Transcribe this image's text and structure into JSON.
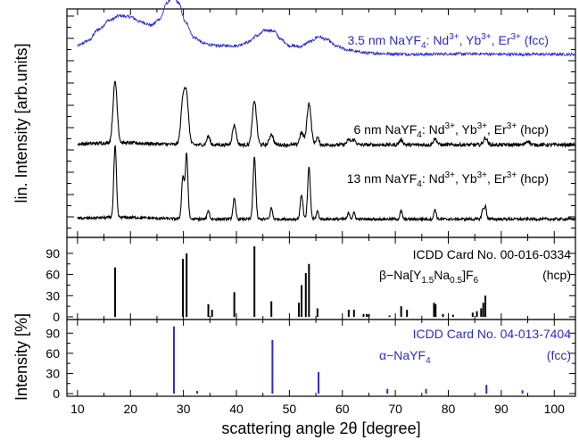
{
  "chart_data": [
    {
      "type": "line",
      "panel": "xrd-patterns",
      "ylabel": "lin. Intensity [arb.units]",
      "xlim": [
        8,
        104
      ],
      "series": [
        {
          "name": "3.5 nm NaYF4: Nd3+, Yb3+, Er3+ (fcc)",
          "label": {
            "text": "3.5 nm NaYF",
            "sub": "4",
            "mid": ": Nd",
            "sup1": "3+",
            "mid2": ", Yb",
            "sup2": "3+",
            "mid3": ",  Er",
            "sup3": "3+",
            "tail": " (fcc)"
          },
          "color": "#2b2bd4",
          "baseline": 0.25,
          "noise": 0.035,
          "points": [
            [
              10,
              0.3
            ],
            [
              12,
              0.42
            ],
            [
              14,
              0.7
            ],
            [
              16,
              0.92
            ],
            [
              18,
              1.03
            ],
            [
              20,
              1.0
            ],
            [
              22,
              0.88
            ],
            [
              24,
              0.8
            ],
            [
              25.5,
              0.95
            ],
            [
              27,
              1.35
            ],
            [
              28,
              1.52
            ],
            [
              29,
              1.35
            ],
            [
              30.5,
              0.85
            ],
            [
              32,
              0.5
            ],
            [
              34,
              0.35
            ],
            [
              36,
              0.3
            ],
            [
              38,
              0.3
            ],
            [
              40,
              0.3
            ],
            [
              42,
              0.38
            ],
            [
              44,
              0.55
            ],
            [
              45.5,
              0.68
            ],
            [
              47,
              0.66
            ],
            [
              48.5,
              0.45
            ],
            [
              50,
              0.3
            ],
            [
              52,
              0.28
            ],
            [
              54,
              0.4
            ],
            [
              55.5,
              0.52
            ],
            [
              57,
              0.45
            ],
            [
              59,
              0.28
            ],
            [
              61,
              0.2
            ],
            [
              63,
              0.15
            ],
            [
              65,
              0.12
            ],
            [
              70,
              0.1
            ],
            [
              75,
              0.09
            ],
            [
              80,
              0.1
            ],
            [
              86,
              0.1
            ],
            [
              90,
              0.09
            ],
            [
              100,
              0.09
            ],
            [
              104,
              0.09
            ]
          ]
        },
        {
          "name": "6 nm NaYF4: Nd3+, Yb3+, Er3+ (hcp)",
          "label": {
            "text": "6 nm  NaYF",
            "sub": "4",
            "mid": ": Nd",
            "sup1": "3+",
            "mid2": ", Yb",
            "sup2": "3+",
            "mid3": ",  Er",
            "sup3": "3+",
            "tail": " (hcp)"
          },
          "color": "#000000",
          "baseline": 0.05,
          "noise": 0.035,
          "peaks": [
            [
              17.1,
              1.25,
              0.55
            ],
            [
              29.9,
              0.85,
              0.55
            ],
            [
              30.6,
              0.9,
              0.55
            ],
            [
              34.7,
              0.18,
              0.4
            ],
            [
              39.6,
              0.4,
              0.5
            ],
            [
              43.4,
              0.9,
              0.55
            ],
            [
              46.6,
              0.22,
              0.5
            ],
            [
              52.3,
              0.25,
              0.5
            ],
            [
              53.7,
              0.85,
              0.55
            ],
            [
              55.3,
              0.15,
              0.4
            ],
            [
              61.2,
              0.1,
              0.5
            ],
            [
              62.2,
              0.1,
              0.5
            ],
            [
              71.1,
              0.1,
              0.5
            ],
            [
              77.5,
              0.12,
              0.5
            ],
            [
              87.0,
              0.14,
              0.5
            ],
            [
              95.0,
              0.08,
              0.5
            ]
          ]
        },
        {
          "name": "13 nm NaYF4: Nd3+, Yb3+, Er3+ (hcp)",
          "label": {
            "text": "13 nm  NaYF",
            "sub": "4",
            "mid": ": Nd",
            "sup1": "3+",
            "mid2": ", Yb",
            "sup2": "3+",
            "mid3": ",  Er",
            "sup3": "3+",
            "tail": " (hcp)"
          },
          "color": "#000000",
          "baseline": 0.05,
          "noise": 0.03,
          "peaks": [
            [
              17.1,
              1.6,
              0.35
            ],
            [
              29.9,
              0.95,
              0.35
            ],
            [
              30.6,
              1.45,
              0.35
            ],
            [
              34.7,
              0.2,
              0.3
            ],
            [
              39.6,
              0.45,
              0.35
            ],
            [
              43.4,
              1.4,
              0.35
            ],
            [
              46.6,
              0.25,
              0.3
            ],
            [
              52.3,
              0.55,
              0.35
            ],
            [
              53.7,
              1.15,
              0.35
            ],
            [
              55.3,
              0.18,
              0.3
            ],
            [
              61.2,
              0.14,
              0.3
            ],
            [
              62.2,
              0.14,
              0.3
            ],
            [
              71.1,
              0.18,
              0.3
            ],
            [
              77.5,
              0.22,
              0.3
            ],
            [
              86.5,
              0.2,
              0.3
            ],
            [
              87.0,
              0.28,
              0.3
            ]
          ]
        }
      ]
    },
    {
      "type": "bar",
      "panel": "icdd-hcp",
      "ylabel": "Intensity [%]",
      "yticks": [
        0,
        30,
        60,
        90
      ],
      "ylim": [
        0,
        105
      ],
      "annotation_line1": "ICDD Card No. 00-016-0334",
      "annotation_line2": {
        "prefix": "β−Na[Y",
        "sub1": "1.5",
        "mid": "Na",
        "sub2": "0.5",
        "mid2": "]F",
        "sub3": "6"
      },
      "annotation_phase": "(hcp)",
      "color": "#000000",
      "x": [
        17.1,
        29.9,
        30.6,
        34.7,
        35.4,
        39.6,
        43.4,
        46.6,
        51.8,
        52.3,
        53.1,
        53.7,
        55.3,
        61.2,
        62.2,
        64.0,
        64.6,
        65.0,
        68.9,
        71.1,
        72.2,
        77.3,
        77.6,
        79.0,
        80.9,
        84.6,
        85.4,
        86.2,
        86.6,
        87.0
      ],
      "values": [
        70,
        82,
        90,
        18,
        10,
        35,
        100,
        22,
        20,
        45,
        62,
        75,
        12,
        10,
        10,
        4,
        4,
        4,
        2,
        15,
        10,
        20,
        18,
        4,
        3,
        6,
        8,
        12,
        20,
        30
      ]
    },
    {
      "type": "bar",
      "panel": "icdd-fcc",
      "xlabel": "scattering angle 2θ [degree]",
      "xlim": [
        8,
        104
      ],
      "xticks": [
        10,
        20,
        30,
        40,
        50,
        60,
        70,
        80,
        90,
        100
      ],
      "yticks": [
        0,
        30,
        60,
        90
      ],
      "ylim": [
        0,
        105
      ],
      "annotation_line1": "ICDD Card No. 04-013-7404",
      "annotation_line2": {
        "prefix": "α−NaYF",
        "sub1": "4"
      },
      "annotation_phase": "(fcc)",
      "color": "#2b2bd4",
      "x": [
        28.2,
        32.6,
        46.8,
        55.5,
        68.5,
        75.8,
        87.2,
        94.0
      ],
      "values": [
        100,
        4,
        80,
        32,
        7,
        7,
        13,
        5
      ]
    }
  ]
}
